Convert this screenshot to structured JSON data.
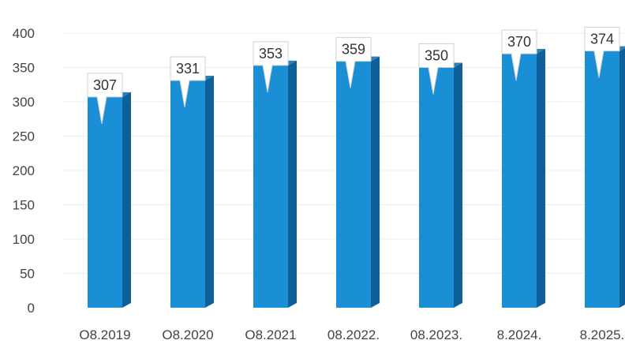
{
  "chart_data": {
    "type": "bar",
    "title": "",
    "xlabel": "",
    "ylabel": "",
    "categories": [
      "O8.2019",
      "O8.2020",
      "O8.2021",
      "08.2022.",
      "08.2023.",
      "8.2024.",
      "8.2025."
    ],
    "values": [
      307,
      331,
      353,
      359,
      350,
      370,
      374
    ],
    "ylim": [
      0,
      400
    ],
    "yticks": [
      0,
      50,
      100,
      150,
      200,
      250,
      300,
      350,
      400
    ],
    "grid": true,
    "legend": "none",
    "style": "3d-bars-with-callout-labels",
    "colors": {
      "bar_front": "#1a8fd6",
      "bar_side": "#0f5f98",
      "bar_top": "#2f7fb8",
      "grid": "#ececec"
    }
  }
}
